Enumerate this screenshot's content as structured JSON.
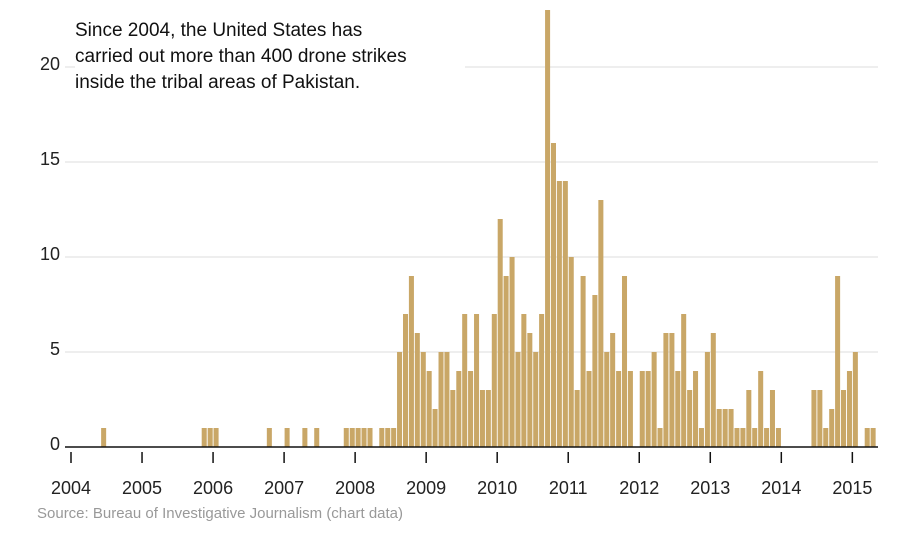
{
  "chart_data": {
    "type": "bar",
    "annotation": "Since 2004, the United States has carried out more than 400 drone strikes inside the tribal areas of Pakistan.",
    "source": "Source: Bureau of Investigative Journalism (chart data)",
    "x": [
      2004.417,
      2005.833,
      2005.917,
      2006,
      2006.75,
      2007,
      2007.25,
      2007.417,
      2007.833,
      2007.917,
      2008,
      2008.083,
      2008.167,
      2008.333,
      2008.417,
      2008.5,
      2008.583,
      2008.667,
      2008.75,
      2008.833,
      2008.917,
      2009,
      2009.083,
      2009.167,
      2009.25,
      2009.333,
      2009.417,
      2009.5,
      2009.583,
      2009.667,
      2009.75,
      2009.833,
      2009.917,
      2010,
      2010.083,
      2010.167,
      2010.25,
      2010.333,
      2010.417,
      2010.5,
      2010.583,
      2010.667,
      2010.75,
      2010.833,
      2010.917,
      2011,
      2011.083,
      2011.167,
      2011.25,
      2011.333,
      2011.417,
      2011.5,
      2011.583,
      2011.667,
      2011.75,
      2011.833,
      2012,
      2012.083,
      2012.167,
      2012.25,
      2012.333,
      2012.417,
      2012.5,
      2012.583,
      2012.667,
      2012.75,
      2012.833,
      2012.917,
      2013,
      2013.083,
      2013.167,
      2013.25,
      2013.333,
      2013.417,
      2013.5,
      2013.583,
      2013.667,
      2013.75,
      2013.833,
      2013.917,
      2014.417,
      2014.5,
      2014.583,
      2014.667,
      2014.75,
      2014.833,
      2014.917,
      2015,
      2015.167,
      2015.25
    ],
    "values": [
      1,
      1,
      1,
      1,
      1,
      1,
      1,
      1,
      1,
      1,
      1,
      1,
      1,
      1,
      1,
      1,
      5,
      7,
      9,
      6,
      5,
      4,
      2,
      5,
      5,
      3,
      4,
      7,
      4,
      7,
      3,
      3,
      7,
      12,
      9,
      10,
      5,
      7,
      6,
      5,
      7,
      23,
      16,
      14,
      14,
      10,
      3,
      9,
      4,
      8,
      13,
      5,
      6,
      4,
      9,
      4,
      4,
      4,
      5,
      1,
      6,
      6,
      4,
      7,
      3,
      4,
      1,
      5,
      6,
      2,
      2,
      2,
      1,
      1,
      3,
      1,
      4,
      1,
      3,
      1,
      3,
      3,
      1,
      2,
      9,
      3,
      4,
      5,
      1,
      1
    ],
    "color": "#c9a767",
    "xlim": [
      2004,
      2015.333
    ],
    "xticks": [
      2004,
      2005,
      2006,
      2007,
      2008,
      2009,
      2010,
      2011,
      2012,
      2013,
      2014,
      2015
    ],
    "ylim": [
      0,
      23
    ],
    "yticks": [
      0,
      5,
      10,
      15,
      20
    ],
    "grid": true
  }
}
